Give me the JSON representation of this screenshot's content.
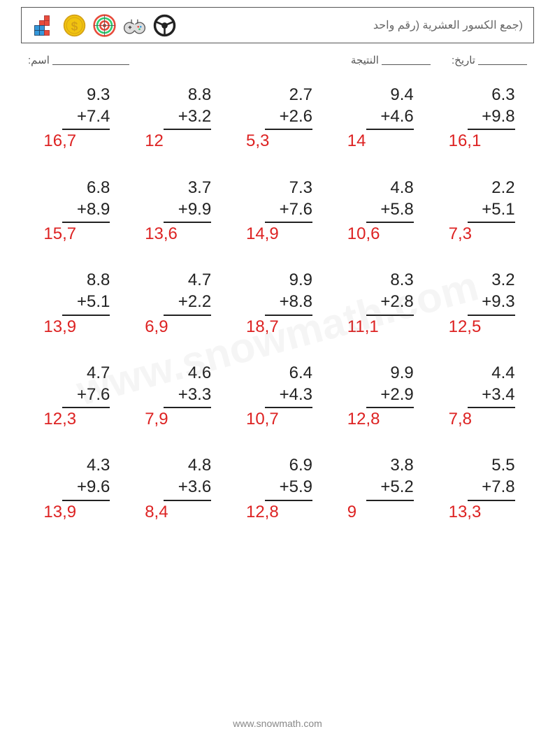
{
  "title": "(جمع الكسور العشرية (رقم واحد",
  "labels": {
    "name": ":اسم",
    "score": "النتيجة",
    "date": ":تاريخ"
  },
  "colors": {
    "text": "#222222",
    "answer": "#d22222",
    "border": "#555555",
    "watermark": "rgba(128,128,128,0.08)",
    "background": "#ffffff"
  },
  "typography": {
    "problem_fontsize": 24,
    "title_fontsize": 16,
    "label_fontsize": 15
  },
  "icons": [
    {
      "name": "blocks-icon",
      "color1": "#e74c3c",
      "color2": "#3498db"
    },
    {
      "name": "coin-icon",
      "color": "#f1c40f"
    },
    {
      "name": "target-icon",
      "color1": "#e74c3c",
      "color2": "#2ecc71"
    },
    {
      "name": "game-controller-icon",
      "color": "#555555"
    },
    {
      "name": "steering-wheel-icon",
      "color": "#222222"
    }
  ],
  "problems": [
    [
      {
        "a": "9.3",
        "b": "+7.4",
        "ans": "16,7"
      },
      {
        "a": "8.8",
        "b": "+3.2",
        "ans": "12"
      },
      {
        "a": "2.7",
        "b": "+2.6",
        "ans": "5,3"
      },
      {
        "a": "9.4",
        "b": "+4.6",
        "ans": "14"
      },
      {
        "a": "6.3",
        "b": "+9.8",
        "ans": "16,1"
      }
    ],
    [
      {
        "a": "6.8",
        "b": "+8.9",
        "ans": "15,7"
      },
      {
        "a": "3.7",
        "b": "+9.9",
        "ans": "13,6"
      },
      {
        "a": "7.3",
        "b": "+7.6",
        "ans": "14,9"
      },
      {
        "a": "4.8",
        "b": "+5.8",
        "ans": "10,6"
      },
      {
        "a": "2.2",
        "b": "+5.1",
        "ans": "7,3"
      }
    ],
    [
      {
        "a": "8.8",
        "b": "+5.1",
        "ans": "13,9"
      },
      {
        "a": "4.7",
        "b": "+2.2",
        "ans": "6,9"
      },
      {
        "a": "9.9",
        "b": "+8.8",
        "ans": "18,7"
      },
      {
        "a": "8.3",
        "b": "+2.8",
        "ans": "11,1"
      },
      {
        "a": "3.2",
        "b": "+9.3",
        "ans": "12,5"
      }
    ],
    [
      {
        "a": "4.7",
        "b": "+7.6",
        "ans": "12,3"
      },
      {
        "a": "4.6",
        "b": "+3.3",
        "ans": "7,9"
      },
      {
        "a": "6.4",
        "b": "+4.3",
        "ans": "10,7"
      },
      {
        "a": "9.9",
        "b": "+2.9",
        "ans": "12,8"
      },
      {
        "a": "4.4",
        "b": "+3.4",
        "ans": "7,8"
      }
    ],
    [
      {
        "a": "4.3",
        "b": "+9.6",
        "ans": "13,9"
      },
      {
        "a": "4.8",
        "b": "+3.6",
        "ans": "8,4"
      },
      {
        "a": "6.9",
        "b": "+5.9",
        "ans": "12,8"
      },
      {
        "a": "3.8",
        "b": "+5.2",
        "ans": "9"
      },
      {
        "a": "5.5",
        "b": "+7.8",
        "ans": "13,3"
      }
    ]
  ],
  "watermark": "www.snowmath.com",
  "footer": "www.snowmath.com"
}
